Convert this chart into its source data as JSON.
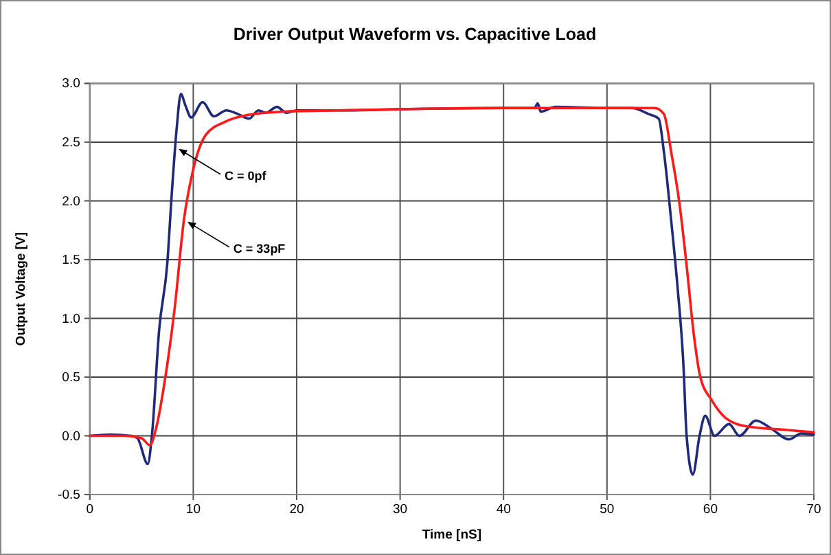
{
  "chart_data": {
    "type": "line",
    "title": "Driver Output Waveform vs. Capacitive Load",
    "xlabel": "Time [nS]",
    "ylabel": "Output Voltage [V]",
    "xlim": [
      0,
      70
    ],
    "xticks": [
      0,
      10,
      20,
      30,
      40,
      50,
      60,
      70
    ],
    "ylim": [
      -0.5,
      3.0
    ],
    "yticks": [
      {
        "value": -0.5,
        "label": "-0.5"
      },
      {
        "value": 0,
        "label": "0.0"
      },
      {
        "value": 0.5,
        "label": "0.5"
      },
      {
        "value": 1,
        "label": "1.0"
      },
      {
        "value": 1.5,
        "label": "1.5"
      },
      {
        "value": 2,
        "label": "2.0"
      },
      {
        "value": 2.5,
        "label": "2.5"
      },
      {
        "value": 3,
        "label": "3.0"
      }
    ],
    "grid": true,
    "marker": "none",
    "line_style": "solid",
    "series": [
      {
        "color": "#1f2a78",
        "x": [
          0,
          2,
          4,
          4.6,
          5.6,
          6.0,
          6.7,
          7.5,
          7.9,
          8.4,
          8.8,
          9.25,
          9.8,
          10.9,
          12.0,
          13.2,
          14.3,
          15.4,
          16.3,
          17.0,
          18.1,
          19.0,
          20,
          25,
          30,
          40,
          43,
          43.3,
          43.6,
          45,
          50,
          52.4,
          54.0,
          55.0,
          55.5,
          56.2,
          56.8,
          57.4,
          57.7,
          58.3,
          58.95,
          59.5,
          60.4,
          61.8,
          62.8,
          64.4,
          65.9,
          67.6,
          68.8,
          70
        ],
        "values": [
          0,
          0.01,
          0,
          -0.02,
          -0.24,
          0,
          0.9,
          1.48,
          2.03,
          2.62,
          2.91,
          2.81,
          2.71,
          2.84,
          2.72,
          2.77,
          2.74,
          2.7,
          2.77,
          2.75,
          2.8,
          2.75,
          2.77,
          2.77,
          2.78,
          2.79,
          2.79,
          2.83,
          2.76,
          2.8,
          2.79,
          2.79,
          2.74,
          2.7,
          2.42,
          1.84,
          1.29,
          0.59,
          0,
          -0.33,
          0,
          0.17,
          0,
          0.1,
          0,
          0.13,
          0.06,
          -0.03,
          0.02,
          0.01
        ]
      },
      {
        "color": "#ff1a1a",
        "x": [
          0,
          3.4,
          5.0,
          5.8,
          6.45,
          7.25,
          8.22,
          9.1,
          9.9,
          11.2,
          13.0,
          15.2,
          18.7,
          23.8,
          30,
          40,
          50,
          54.6,
          55.5,
          56.2,
          57.05,
          57.7,
          58.4,
          59.0,
          60.15,
          61.5,
          63.5,
          67.4,
          70
        ],
        "values": [
          0,
          0,
          -0.02,
          -0.08,
          0.08,
          0.47,
          1.1,
          1.84,
          2.23,
          2.56,
          2.67,
          2.73,
          2.76,
          2.77,
          2.78,
          2.79,
          2.79,
          2.79,
          2.74,
          2.42,
          1.95,
          1.45,
          0.86,
          0.51,
          0.3,
          0.15,
          0.08,
          0.05,
          0.03
        ]
      }
    ],
    "annotations": [
      {
        "text": "C = 0pf",
        "x": 8.25,
        "y": 2.46
      },
      {
        "text": "C = 33pF",
        "x": 9.1,
        "y": 1.84
      }
    ]
  }
}
